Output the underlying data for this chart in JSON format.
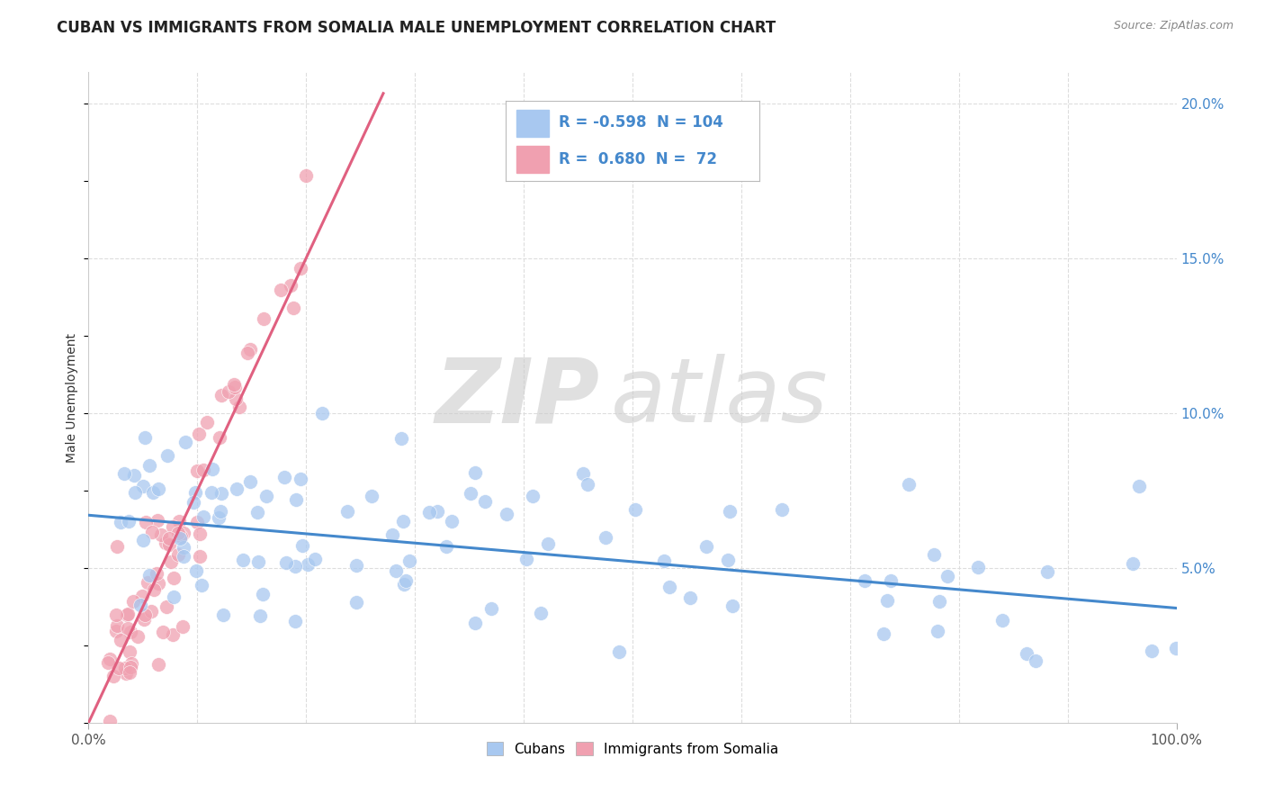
{
  "title": "CUBAN VS IMMIGRANTS FROM SOMALIA MALE UNEMPLOYMENT CORRELATION CHART",
  "source": "Source: ZipAtlas.com",
  "ylabel": "Male Unemployment",
  "xlim": [
    0,
    1.0
  ],
  "ylim": [
    0,
    0.21
  ],
  "xtick_positions": [
    0.0,
    1.0
  ],
  "xtick_labels": [
    "0.0%",
    "100.0%"
  ],
  "ytick_positions": [
    0.05,
    0.1,
    0.15,
    0.2
  ],
  "ytick_labels": [
    "5.0%",
    "10.0%",
    "15.0%",
    "20.0%"
  ],
  "blue_color": "#A8C8F0",
  "pink_color": "#F0A0B0",
  "blue_line_color": "#4488CC",
  "pink_line_color": "#E06080",
  "legend_blue_R": "-0.598",
  "legend_blue_N": "104",
  "legend_pink_R": "0.680",
  "legend_pink_N": "72",
  "legend_blue_label": "Cubans",
  "legend_pink_label": "Immigrants from Somalia",
  "watermark_zip": "ZIP",
  "watermark_atlas": "atlas",
  "blue_N": 104,
  "pink_N": 72,
  "blue_intercept": 0.067,
  "blue_slope": -0.03,
  "pink_slope": 0.75,
  "title_fontsize": 12,
  "source_fontsize": 9,
  "axis_label_fontsize": 10,
  "tick_fontsize": 11,
  "watermark_color": "#CCCCCC",
  "background_color": "#FFFFFF",
  "grid_color": "#DDDDDD"
}
